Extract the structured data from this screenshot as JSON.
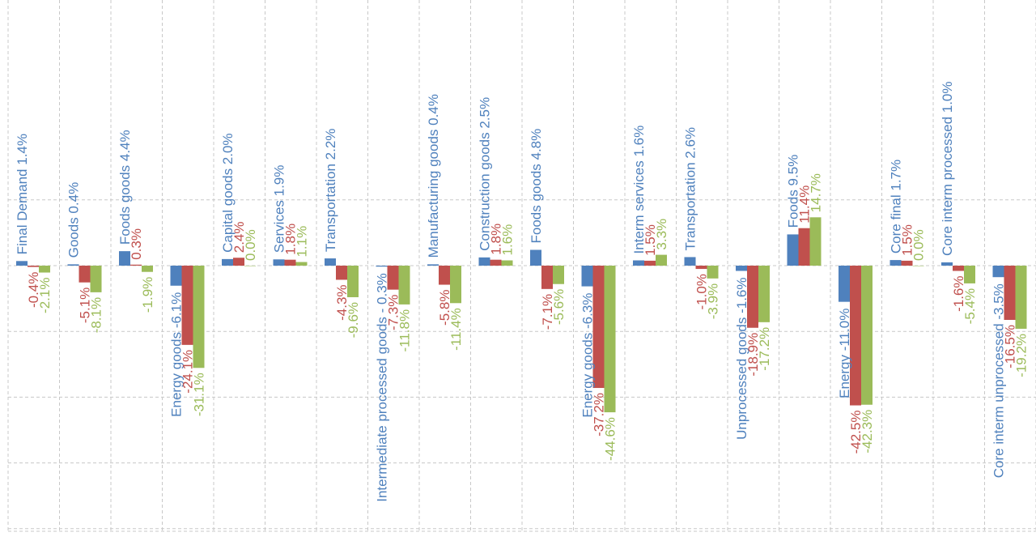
{
  "colors": {
    "series1": "#4f81bd",
    "series2": "#c0504d",
    "series3": "#9bbb59",
    "grid": "#c8c8c8"
  },
  "chart_data": {
    "type": "bar",
    "grid": true,
    "ylim": [
      -55,
      20
    ],
    "groups": [
      {
        "label": "Final Demand 1.4%",
        "values": [
          1.4,
          -0.4,
          -2.1
        ],
        "labels": [
          "",
          "-0.4%",
          "-2.1%"
        ]
      },
      {
        "label": "Goods 0.4%",
        "values": [
          0.4,
          -5.1,
          -8.1
        ],
        "labels": [
          "",
          "-5.1%",
          "-8.1%"
        ]
      },
      {
        "label": "Foods goods 4.4%",
        "values": [
          4.4,
          0.3,
          -1.9
        ],
        "labels": [
          "",
          "0.3%",
          "-1.9%"
        ]
      },
      {
        "label": "Energy goods -6.1%",
        "values": [
          -6.1,
          -24.1,
          -31.1
        ],
        "labels": [
          "",
          "-24.1%",
          "-31.1%"
        ]
      },
      {
        "label": "Capital goods 2.0%",
        "values": [
          2.0,
          2.4,
          0.0
        ],
        "labels": [
          "",
          "2.4%",
          "0.0%"
        ]
      },
      {
        "label": "Services 1.9%",
        "values": [
          1.9,
          1.8,
          1.1
        ],
        "labels": [
          "",
          "1.8%",
          "1.1%"
        ]
      },
      {
        "label": "Transportation 2.2%",
        "values": [
          2.2,
          -4.3,
          -9.6
        ],
        "labels": [
          "",
          "-4.3%",
          "-9.6%"
        ]
      },
      {
        "label": "Intermediate processed goods - 0.3%",
        "values": [
          -0.3,
          -7.3,
          -11.8
        ],
        "labels": [
          "",
          "-7.3%",
          "-11.8%"
        ]
      },
      {
        "label": "Manufacturing goods 0.4%",
        "values": [
          0.4,
          -5.8,
          -11.4
        ],
        "labels": [
          "",
          "-5.8%",
          "-11.4%"
        ]
      },
      {
        "label": "Construction goods 2.5%",
        "values": [
          2.5,
          1.8,
          1.6
        ],
        "labels": [
          "",
          "1.8%",
          "1.6%"
        ]
      },
      {
        "label": "Foods goods 4.8%",
        "values": [
          4.8,
          -7.1,
          -5.6
        ],
        "labels": [
          "",
          "-7.1%",
          "-5.6%"
        ]
      },
      {
        "label": "Energy goods -6.3%",
        "values": [
          -6.3,
          -37.2,
          -44.6
        ],
        "labels": [
          "",
          "-37.2%",
          "-44.6%"
        ]
      },
      {
        "label": "Interm services 1.6%",
        "values": [
          1.6,
          1.5,
          3.3
        ],
        "labels": [
          "",
          "1.5%",
          "3.3%"
        ]
      },
      {
        "label": "Transportation 2.6%",
        "values": [
          2.6,
          -1.0,
          -3.9
        ],
        "labels": [
          "",
          "-1.0%",
          "-3.9%"
        ]
      },
      {
        "label": "Unprocessed goods -1.6%",
        "values": [
          -1.6,
          -18.9,
          -17.2
        ],
        "labels": [
          "",
          "-18.9%",
          "-17.2%"
        ]
      },
      {
        "label": "Foods 9.5%",
        "values": [
          9.5,
          11.4,
          14.7
        ],
        "labels": [
          "",
          "11.4%",
          "14.7%"
        ]
      },
      {
        "label": "Energy -11.0%",
        "values": [
          -11.0,
          -42.5,
          -42.3
        ],
        "labels": [
          "",
          "-42.5%",
          "-42.3%"
        ]
      },
      {
        "label": "Core final 1.7%",
        "values": [
          1.7,
          1.5,
          0.0
        ],
        "labels": [
          "",
          "1.5%",
          "0.0%"
        ]
      },
      {
        "label": "Core interm processed 1.0%",
        "values": [
          1.0,
          -1.6,
          -5.4
        ],
        "labels": [
          "",
          "-1.6%",
          "-5.4%"
        ]
      },
      {
        "label": "Core interm unprocessed -3.5%",
        "values": [
          -3.5,
          -16.5,
          -19.2
        ],
        "labels": [
          "",
          "-16.5%",
          "-19.2%"
        ]
      }
    ]
  }
}
